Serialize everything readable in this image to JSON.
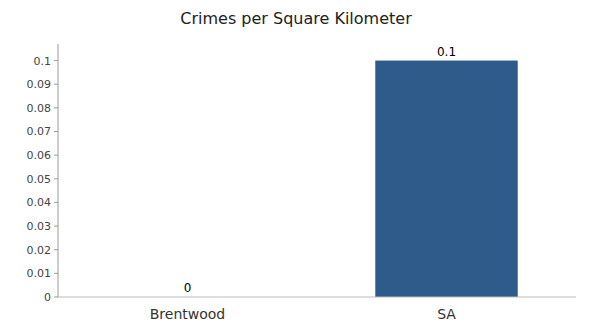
{
  "chart_data": {
    "type": "bar",
    "title": "Crimes per Square Kilometer",
    "categories": [
      "Brentwood",
      "SA"
    ],
    "values": [
      0,
      0.1
    ],
    "colors": [
      "#2e5b8a",
      "#2e5b8a"
    ],
    "ylim": [
      0,
      0.107
    ],
    "yticks": [
      0,
      0.01,
      0.02,
      0.03,
      0.04,
      0.05,
      0.06,
      0.07,
      0.08,
      0.09,
      0.1
    ],
    "data_labels": true,
    "grid": false
  }
}
